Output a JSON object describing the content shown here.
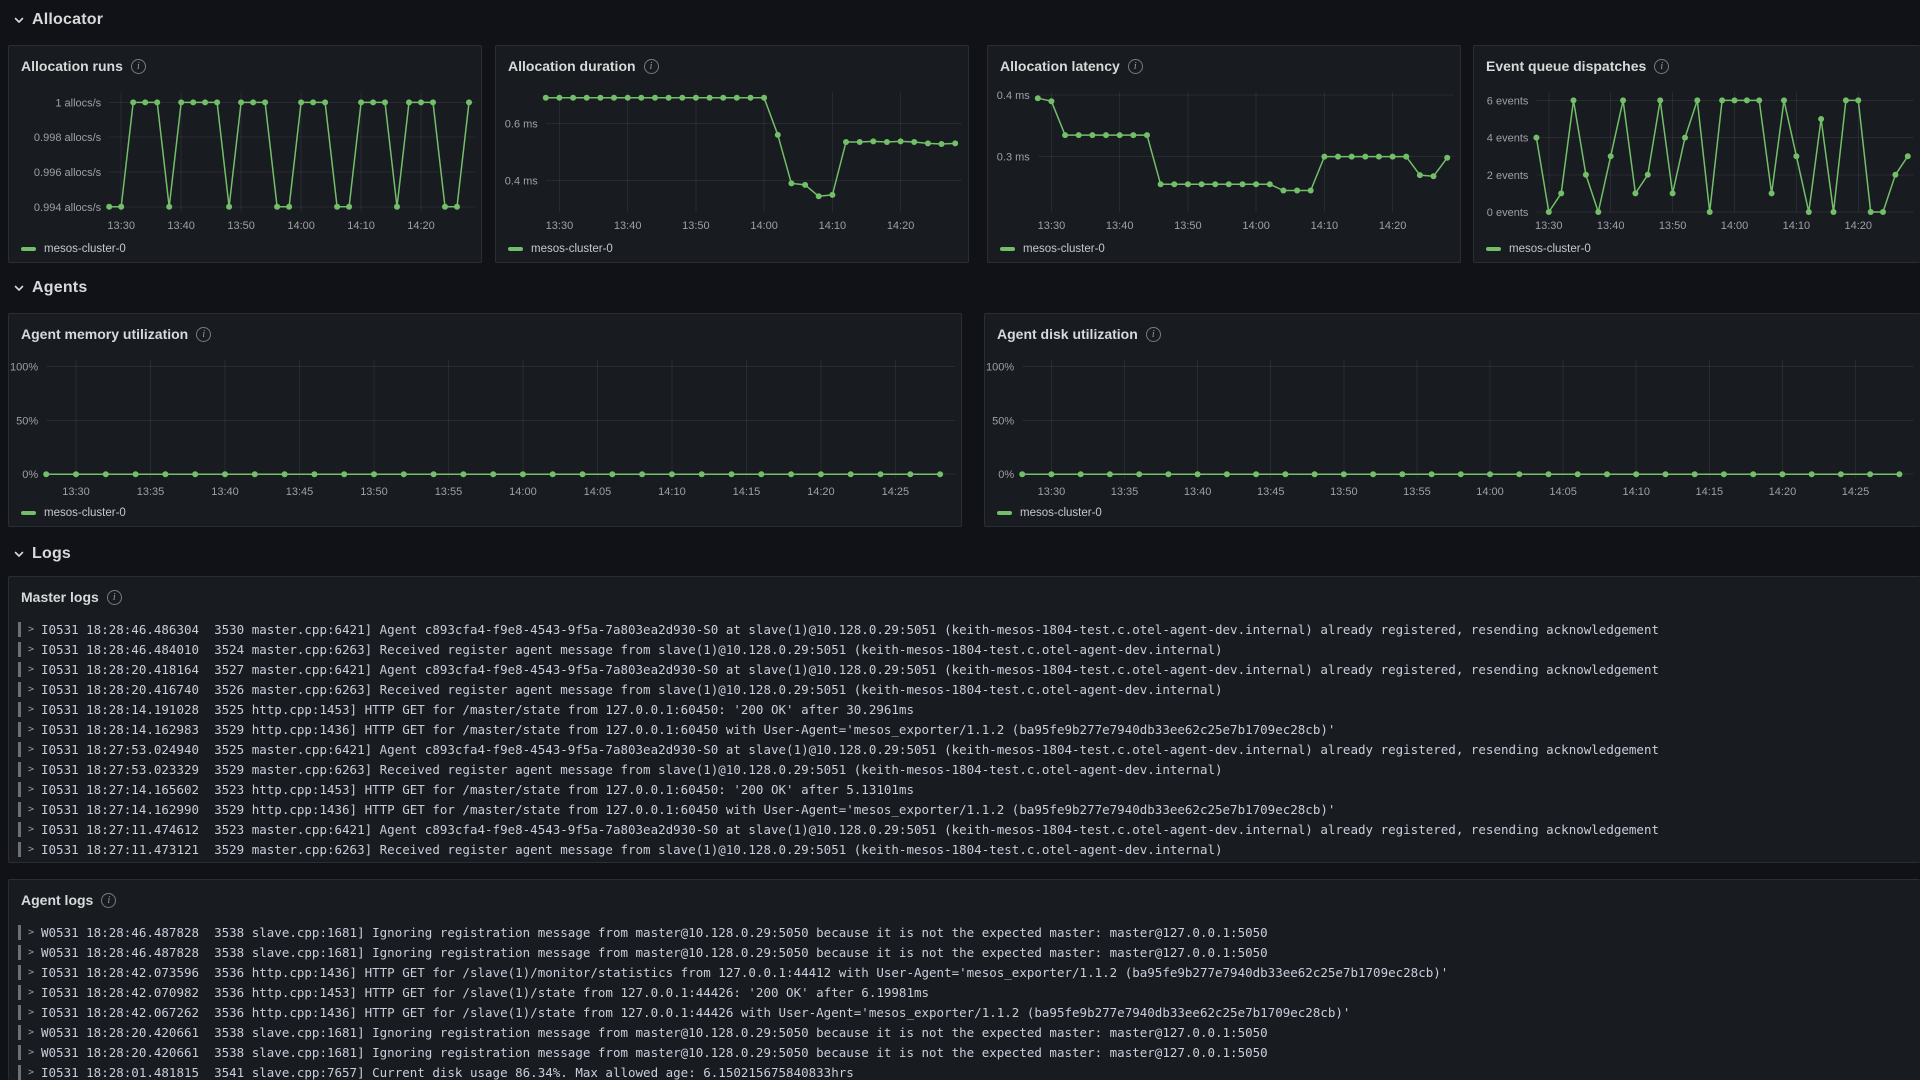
{
  "colors": {
    "page_bg": "#111217",
    "panel_bg": "#181b1f",
    "panel_border": "#24262c",
    "series_green": "#73bf69",
    "text_primary": "#d8d9da",
    "axis_text": "#9da0a8",
    "grid": "rgba(204,204,220,0.09)",
    "log_text": "#ccccdc",
    "log_level_bar": "#6e7079"
  },
  "sections": [
    {
      "title": "Allocator"
    },
    {
      "title": "Agents"
    },
    {
      "title": "Logs"
    }
  ],
  "legend_label": "mesos-cluster-0",
  "time_axis": [
    "13:28",
    "13:30",
    "13:32",
    "13:34",
    "13:36",
    "13:38",
    "13:40",
    "13:42",
    "13:44",
    "13:46",
    "13:48",
    "13:50",
    "13:52",
    "13:54",
    "13:56",
    "13:58",
    "14:00",
    "14:02",
    "14:04",
    "14:06",
    "14:08",
    "14:10",
    "14:12",
    "14:14",
    "14:16",
    "14:18",
    "14:20",
    "14:22",
    "14:24",
    "14:26",
    "14:28"
  ],
  "chart_data": [
    {
      "panel_id": "allocation-runs",
      "title": "Allocation runs",
      "type": "line",
      "series": [
        {
          "name": "mesos-cluster-0",
          "values": [
            0.994,
            0.994,
            1,
            1,
            1,
            0.994,
            1,
            1,
            1,
            1,
            0.994,
            1,
            1,
            1,
            0.994,
            0.994,
            1,
            1,
            1,
            0.994,
            0.994,
            1,
            1,
            1,
            0.994,
            1,
            1,
            1,
            0.994,
            0.994,
            1
          ]
        }
      ],
      "yticks": [
        {
          "v": 1,
          "label": "1 allocs/s"
        },
        {
          "v": 0.998,
          "label": "0.998 allocs/s"
        },
        {
          "v": 0.996,
          "label": "0.996 allocs/s"
        },
        {
          "v": 0.994,
          "label": "0.994 allocs/s"
        }
      ],
      "ylim": [
        0.9937,
        1.0006
      ],
      "xticks": [
        "13:30",
        "13:40",
        "13:50",
        "14:00",
        "14:10",
        "14:20"
      ],
      "xlim": [
        "13:28",
        "14:29"
      ],
      "grid": true,
      "legend_position": "bottom"
    },
    {
      "panel_id": "allocation-duration",
      "title": "Allocation duration",
      "type": "line",
      "series": [
        {
          "name": "mesos-cluster-0",
          "values": [
            0.69,
            0.69,
            0.69,
            0.69,
            0.69,
            0.69,
            0.69,
            0.69,
            0.69,
            0.69,
            0.69,
            0.69,
            0.69,
            0.69,
            0.69,
            0.69,
            0.69,
            0.56,
            0.39,
            0.385,
            0.345,
            0.35,
            0.535,
            0.535,
            0.537,
            0.535,
            0.537,
            0.535,
            0.53,
            0.528,
            0.53
          ]
        }
      ],
      "yticks": [
        {
          "v": 0.6,
          "label": "0.6 ms"
        },
        {
          "v": 0.4,
          "label": "0.4 ms"
        }
      ],
      "ylim": [
        0.29,
        0.71
      ],
      "xticks": [
        "13:30",
        "13:40",
        "13:50",
        "14:00",
        "14:10",
        "14:20"
      ],
      "xlim": [
        "13:28",
        "14:29"
      ],
      "grid": true,
      "legend_position": "bottom"
    },
    {
      "panel_id": "allocation-latency",
      "title": "Allocation latency",
      "type": "line",
      "series": [
        {
          "name": "mesos-cluster-0",
          "values": [
            0.395,
            0.39,
            0.335,
            0.335,
            0.335,
            0.335,
            0.335,
            0.335,
            0.335,
            0.255,
            0.255,
            0.255,
            0.255,
            0.255,
            0.255,
            0.255,
            0.255,
            0.255,
            0.245,
            0.245,
            0.245,
            0.3,
            0.3,
            0.3,
            0.3,
            0.3,
            0.3,
            0.3,
            0.27,
            0.268,
            0.298
          ]
        }
      ],
      "yticks": [
        {
          "v": 0.4,
          "label": "0.4 ms"
        },
        {
          "v": 0.3,
          "label": "0.3 ms"
        }
      ],
      "ylim": [
        0.21,
        0.405
      ],
      "xticks": [
        "13:30",
        "13:40",
        "13:50",
        "14:00",
        "14:10",
        "14:20"
      ],
      "xlim": [
        "13:28",
        "14:29"
      ],
      "grid": true,
      "legend_position": "bottom"
    },
    {
      "panel_id": "event-queue-dispatches",
      "title": "Event queue dispatches",
      "type": "line",
      "series": [
        {
          "name": "mesos-cluster-0",
          "values": [
            4,
            0,
            1,
            6,
            2,
            0,
            3,
            6,
            1,
            2,
            6,
            1,
            4,
            6,
            0,
            6,
            6,
            6,
            6,
            1,
            6,
            3,
            0,
            5,
            0,
            6,
            6,
            0,
            0,
            2,
            3
          ]
        }
      ],
      "yticks": [
        {
          "v": 6,
          "label": "6 events"
        },
        {
          "v": 4,
          "label": "4 events"
        },
        {
          "v": 2,
          "label": "2 events"
        },
        {
          "v": 0,
          "label": "0 events"
        }
      ],
      "ylim": [
        0,
        6.45
      ],
      "xticks": [
        "13:30",
        "13:40",
        "13:50",
        "14:00",
        "14:10",
        "14:20"
      ],
      "xlim": [
        "13:28",
        "14:29"
      ],
      "grid": true,
      "legend_position": "bottom"
    },
    {
      "panel_id": "agent-memory-utilization",
      "title": "Agent memory utilization",
      "type": "line",
      "series": [
        {
          "name": "mesos-cluster-0",
          "values": [
            0,
            0,
            0,
            0,
            0,
            0,
            0,
            0,
            0,
            0,
            0,
            0,
            0,
            0,
            0,
            0,
            0,
            0,
            0,
            0,
            0,
            0,
            0,
            0,
            0,
            0,
            0,
            0,
            0,
            0,
            0
          ]
        }
      ],
      "yticks": [
        {
          "v": 100,
          "label": "100%"
        },
        {
          "v": 50,
          "label": "50%"
        },
        {
          "v": 0,
          "label": "0%"
        }
      ],
      "ylim": [
        -3.5,
        106
      ],
      "xticks": [
        "13:30",
        "13:35",
        "13:40",
        "13:45",
        "13:50",
        "13:55",
        "14:00",
        "14:05",
        "14:10",
        "14:15",
        "14:20",
        "14:25"
      ],
      "xlim": [
        "13:28",
        "14:29"
      ],
      "grid": true,
      "legend_position": "bottom"
    },
    {
      "panel_id": "agent-disk-utilization",
      "title": "Agent disk utilization",
      "type": "line",
      "series": [
        {
          "name": "mesos-cluster-0",
          "values": [
            0,
            0,
            0,
            0,
            0,
            0,
            0,
            0,
            0,
            0,
            0,
            0,
            0,
            0,
            0,
            0,
            0,
            0,
            0,
            0,
            0,
            0,
            0,
            0,
            0,
            0,
            0,
            0,
            0,
            0,
            0
          ]
        }
      ],
      "yticks": [
        {
          "v": 100,
          "label": "100%"
        },
        {
          "v": 50,
          "label": "50%"
        },
        {
          "v": 0,
          "label": "0%"
        }
      ],
      "ylim": [
        -3.5,
        106
      ],
      "xticks": [
        "13:30",
        "13:35",
        "13:40",
        "13:45",
        "13:50",
        "13:55",
        "14:00",
        "14:05",
        "14:10",
        "14:15",
        "14:20",
        "14:25"
      ],
      "xlim": [
        "13:28",
        "14:29"
      ],
      "grid": true,
      "legend_position": "bottom"
    }
  ],
  "logs": {
    "master": {
      "title": "Master logs",
      "lines": [
        "I0531 18:28:46.486304  3530 master.cpp:6421] Agent c893cfa4-f9e8-4543-9f5a-7a803ea2d930-S0 at slave(1)@10.128.0.29:5051 (keith-mesos-1804-test.c.otel-agent-dev.internal) already registered, resending acknowledgement",
        "I0531 18:28:46.484010  3524 master.cpp:6263] Received register agent message from slave(1)@10.128.0.29:5051 (keith-mesos-1804-test.c.otel-agent-dev.internal)",
        "I0531 18:28:20.418164  3527 master.cpp:6421] Agent c893cfa4-f9e8-4543-9f5a-7a803ea2d930-S0 at slave(1)@10.128.0.29:5051 (keith-mesos-1804-test.c.otel-agent-dev.internal) already registered, resending acknowledgement",
        "I0531 18:28:20.416740  3526 master.cpp:6263] Received register agent message from slave(1)@10.128.0.29:5051 (keith-mesos-1804-test.c.otel-agent-dev.internal)",
        "I0531 18:28:14.191028  3525 http.cpp:1453] HTTP GET for /master/state from 127.0.0.1:60450: '200 OK' after 30.2961ms",
        "I0531 18:28:14.162983  3529 http.cpp:1436] HTTP GET for /master/state from 127.0.0.1:60450 with User-Agent='mesos_exporter/1.1.2 (ba95fe9b277e7940db33ee62c25e7b1709ec28cb)'",
        "I0531 18:27:53.024940  3525 master.cpp:6421] Agent c893cfa4-f9e8-4543-9f5a-7a803ea2d930-S0 at slave(1)@10.128.0.29:5051 (keith-mesos-1804-test.c.otel-agent-dev.internal) already registered, resending acknowledgement",
        "I0531 18:27:53.023329  3529 master.cpp:6263] Received register agent message from slave(1)@10.128.0.29:5051 (keith-mesos-1804-test.c.otel-agent-dev.internal)",
        "I0531 18:27:14.165602  3523 http.cpp:1453] HTTP GET for /master/state from 127.0.0.1:60450: '200 OK' after 5.13101ms",
        "I0531 18:27:14.162990  3529 http.cpp:1436] HTTP GET for /master/state from 127.0.0.1:60450 with User-Agent='mesos_exporter/1.1.2 (ba95fe9b277e7940db33ee62c25e7b1709ec28cb)'",
        "I0531 18:27:11.474612  3523 master.cpp:6421] Agent c893cfa4-f9e8-4543-9f5a-7a803ea2d930-S0 at slave(1)@10.128.0.29:5051 (keith-mesos-1804-test.c.otel-agent-dev.internal) already registered, resending acknowledgement",
        "I0531 18:27:11.473121  3529 master.cpp:6263] Received register agent message from slave(1)@10.128.0.29:5051 (keith-mesos-1804-test.c.otel-agent-dev.internal)"
      ]
    },
    "agent": {
      "title": "Agent logs",
      "lines": [
        "W0531 18:28:46.487828  3538 slave.cpp:1681] Ignoring registration message from master@10.128.0.29:5050 because it is not the expected master: master@127.0.0.1:5050",
        "W0531 18:28:46.487828  3538 slave.cpp:1681] Ignoring registration message from master@10.128.0.29:5050 because it is not the expected master: master@127.0.0.1:5050",
        "I0531 18:28:42.073596  3536 http.cpp:1436] HTTP GET for /slave(1)/monitor/statistics from 127.0.0.1:44412 with User-Agent='mesos_exporter/1.1.2 (ba95fe9b277e7940db33ee62c25e7b1709ec28cb)'",
        "I0531 18:28:42.070982  3536 http.cpp:1453] HTTP GET for /slave(1)/state from 127.0.0.1:44426: '200 OK' after 6.19981ms",
        "I0531 18:28:42.067262  3536 http.cpp:1436] HTTP GET for /slave(1)/state from 127.0.0.1:44426 with User-Agent='mesos_exporter/1.1.2 (ba95fe9b277e7940db33ee62c25e7b1709ec28cb)'",
        "W0531 18:28:20.420661  3538 slave.cpp:1681] Ignoring registration message from master@10.128.0.29:5050 because it is not the expected master: master@127.0.0.1:5050",
        "W0531 18:28:20.420661  3538 slave.cpp:1681] Ignoring registration message from master@10.128.0.29:5050 because it is not the expected master: master@127.0.0.1:5050",
        "I0531 18:28:01.481815  3541 slave.cpp:7657] Current disk usage 86.34%. Max allowed age: 6.150215675840833hrs"
      ]
    }
  }
}
